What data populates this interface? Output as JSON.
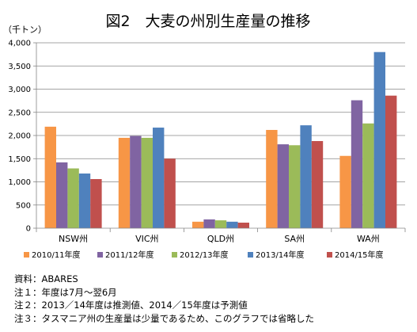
{
  "chart_data": {
    "type": "bar",
    "title": "図2　大麦の州別生産量の推移",
    "unit_label": "（千トン）",
    "xlabel": "",
    "ylabel": "",
    "ylim": [
      0,
      4000
    ],
    "yticks": [
      "0",
      "500",
      "1,000",
      "1,500",
      "2,000",
      "2,500",
      "3,000",
      "3,500",
      "4,000"
    ],
    "categories": [
      "NSW州",
      "VIC州",
      "QLD州",
      "SA州",
      "WA州"
    ],
    "series": [
      {
        "name": "2010/11年度",
        "color": "#F79646",
        "values": [
          2190,
          1950,
          140,
          2120,
          1560
        ]
      },
      {
        "name": "2011/12年度",
        "color": "#8064A2",
        "values": [
          1420,
          1990,
          190,
          1810,
          2760
        ]
      },
      {
        "name": "2012/13年度",
        "color": "#9BBB59",
        "values": [
          1290,
          1950,
          170,
          1790,
          2260
        ]
      },
      {
        "name": "2013/14年度",
        "color": "#4F81BD",
        "values": [
          1180,
          2170,
          140,
          2220,
          3800
        ]
      },
      {
        "name": "2014/15年度",
        "color": "#C0504D",
        "values": [
          1060,
          1500,
          120,
          1880,
          2860
        ]
      }
    ],
    "grid": true,
    "legend_position": "bottom"
  },
  "notes": [
    "資料：ABARES",
    "注１：年度は7月～翌6月",
    "注２：2013／14年度は推測値、2014／15年度は予測値",
    "注３：タスマニア州の生産量は少量であるため、このグラフでは省略した"
  ]
}
